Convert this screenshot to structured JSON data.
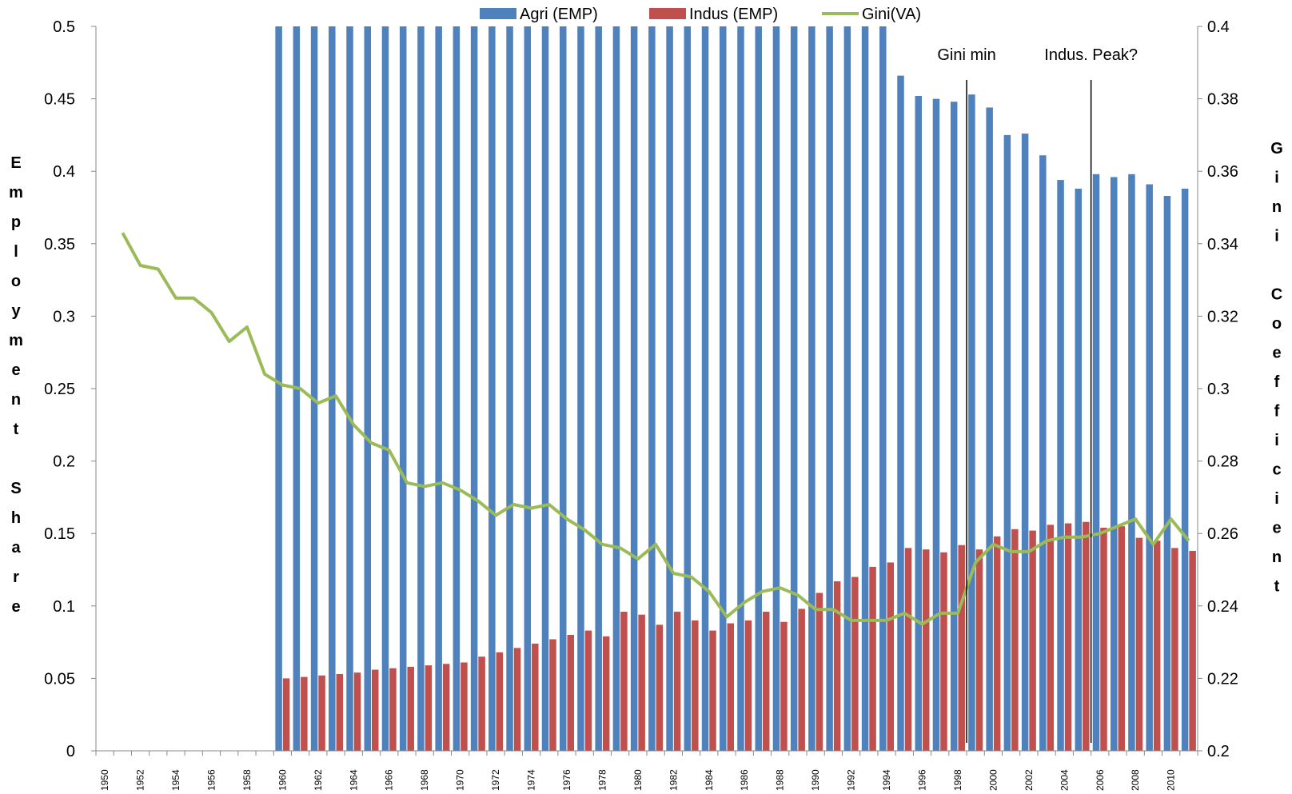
{
  "chart_data": {
    "type": "bar",
    "legend": {
      "position": "top",
      "items": [
        "Agri (EMP)",
        "Indus (EMP)",
        "Gini(VA)"
      ]
    },
    "colors": {
      "agri": "#4f81bd",
      "indus": "#c0504d",
      "gini": "#9bbb59"
    },
    "ylabel": "Employment Share",
    "ylabel_right": "Gini Coefficient",
    "ylim": [
      0,
      0.5
    ],
    "ylim_right": [
      0.2,
      0.4
    ],
    "y_ticks": [
      "0",
      "0.05",
      "0.1",
      "0.15",
      "0.2",
      "0.25",
      "0.3",
      "0.35",
      "0.4",
      "0.45",
      "0.5"
    ],
    "y_ticks_right": [
      "0.2",
      "0.22",
      "0.24",
      "0.26",
      "0.28",
      "0.3",
      "0.32",
      "0.34",
      "0.36",
      "0.38",
      "0.4"
    ],
    "x_ticks": [
      "1950",
      "1952",
      "1954",
      "1956",
      "1958",
      "1960",
      "1962",
      "1964",
      "1966",
      "1968",
      "1970",
      "1972",
      "1974",
      "1976",
      "1978",
      "1980",
      "1982",
      "1984",
      "1986",
      "1988",
      "1990",
      "1992",
      "1994",
      "1996",
      "1998",
      "2000",
      "2002",
      "2004",
      "2006",
      "2008",
      "2010"
    ],
    "x": [
      1950,
      1951,
      1952,
      1953,
      1954,
      1955,
      1956,
      1957,
      1958,
      1959,
      1960,
      1961,
      1962,
      1963,
      1964,
      1965,
      1966,
      1967,
      1968,
      1969,
      1970,
      1971,
      1972,
      1973,
      1974,
      1975,
      1976,
      1977,
      1978,
      1979,
      1980,
      1981,
      1982,
      1983,
      1984,
      1985,
      1986,
      1987,
      1988,
      1989,
      1990,
      1991,
      1992,
      1993,
      1994,
      1995,
      1996,
      1997,
      1998,
      1999,
      2000,
      2001,
      2002,
      2003,
      2004,
      2005,
      2006,
      2007,
      2008,
      2009,
      2010,
      2011
    ],
    "series": [
      {
        "name": "Agri (EMP)",
        "type": "bar",
        "axis": "left",
        "values": [
          null,
          null,
          null,
          null,
          null,
          null,
          null,
          null,
          null,
          null,
          0.5,
          0.5,
          0.5,
          0.5,
          0.5,
          0.5,
          0.5,
          0.5,
          0.5,
          0.5,
          0.5,
          0.5,
          0.5,
          0.5,
          0.5,
          0.5,
          0.5,
          0.5,
          0.5,
          0.5,
          0.5,
          0.5,
          0.5,
          0.5,
          0.5,
          0.5,
          0.5,
          0.5,
          0.5,
          0.5,
          0.5,
          0.5,
          0.5,
          0.5,
          0.5,
          0.466,
          0.452,
          0.45,
          0.448,
          0.453,
          0.444,
          0.425,
          0.426,
          0.411,
          0.394,
          0.388,
          0.398,
          0.396,
          0.398,
          0.391,
          0.383,
          0.388
        ]
      },
      {
        "name": "Indus (EMP)",
        "type": "bar",
        "axis": "left",
        "values": [
          null,
          null,
          null,
          null,
          null,
          null,
          null,
          null,
          null,
          null,
          0.05,
          0.051,
          0.052,
          0.053,
          0.054,
          0.056,
          0.057,
          0.058,
          0.059,
          0.06,
          0.061,
          0.065,
          0.068,
          0.071,
          0.074,
          0.077,
          0.08,
          0.083,
          0.079,
          0.096,
          0.094,
          0.087,
          0.096,
          0.09,
          0.083,
          0.088,
          0.09,
          0.096,
          0.089,
          0.098,
          0.109,
          0.117,
          0.12,
          0.127,
          0.13,
          0.14,
          0.139,
          0.137,
          0.142,
          0.139,
          0.148,
          0.153,
          0.152,
          0.156,
          0.157,
          0.158,
          0.154,
          0.155,
          0.147,
          0.145,
          0.14,
          0.138
        ]
      },
      {
        "name": "Gini(VA)",
        "type": "line",
        "axis": "right",
        "values": [
          null,
          0.343,
          0.334,
          0.333,
          0.325,
          0.325,
          0.321,
          0.313,
          0.317,
          0.304,
          0.301,
          0.3,
          0.296,
          0.298,
          0.29,
          0.285,
          0.283,
          0.274,
          0.273,
          0.274,
          0.272,
          0.269,
          0.265,
          0.268,
          0.267,
          0.268,
          0.264,
          0.261,
          0.257,
          0.256,
          0.253,
          0.257,
          0.249,
          0.248,
          0.244,
          0.237,
          0.241,
          0.244,
          0.245,
          0.243,
          0.239,
          0.239,
          0.236,
          0.236,
          0.236,
          0.238,
          0.235,
          0.238,
          0.238,
          0.252,
          0.257,
          0.255,
          0.255,
          0.258,
          0.259,
          0.259,
          0.26,
          0.262,
          0.264,
          0.257,
          0.264,
          0.258
        ]
      }
    ],
    "annotations": [
      {
        "text": "Gini min",
        "x": 1998
      },
      {
        "text": "Indus. Peak?",
        "x": 2005
      }
    ],
    "grid": false
  }
}
